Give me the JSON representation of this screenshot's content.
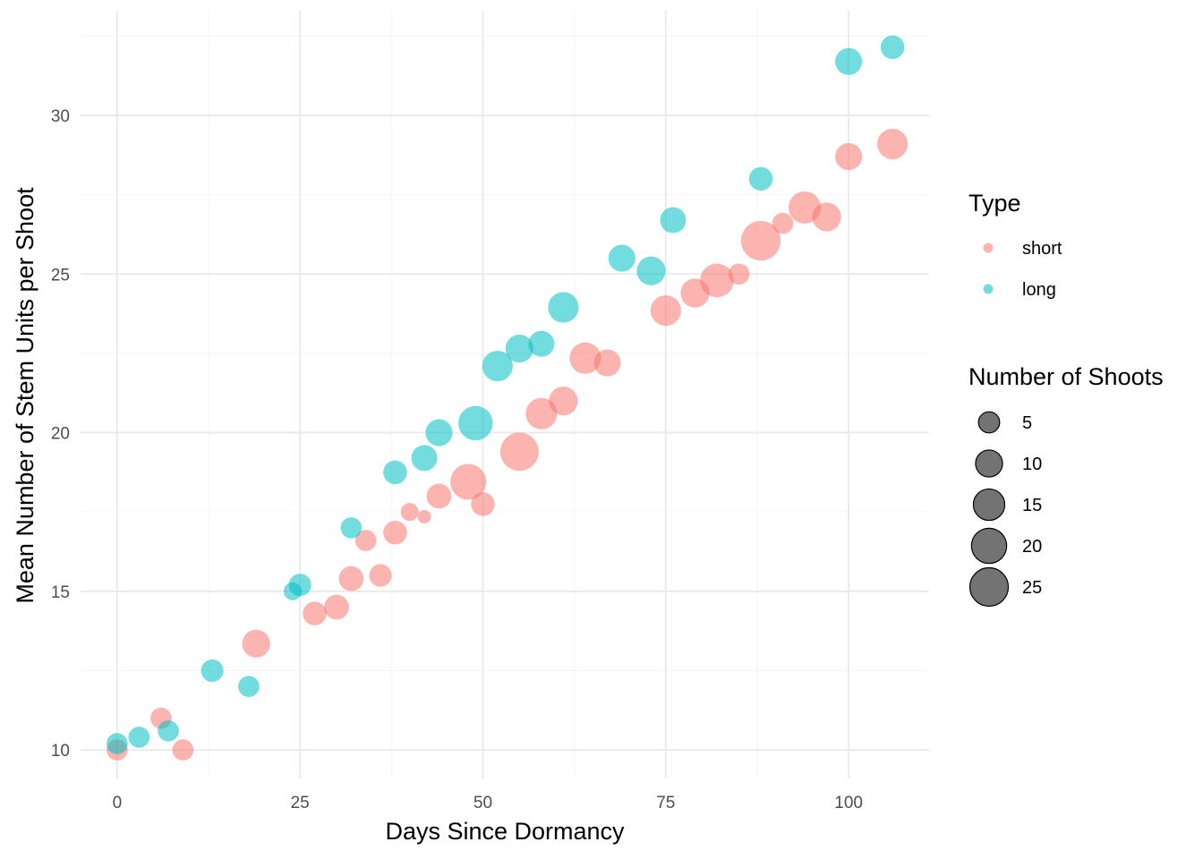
{
  "chart_data": {
    "type": "scatter",
    "xlabel": "Days Since Dormancy",
    "ylabel": "Mean Number of Stem Units per Shoot",
    "xlim": [
      -5,
      111
    ],
    "ylim": [
      9.1,
      33.3
    ],
    "x_ticks": [
      0,
      25,
      50,
      75,
      100
    ],
    "x_tick_labels": [
      "0",
      "25",
      "50",
      "75",
      "100"
    ],
    "y_ticks": [
      10,
      15,
      20,
      25,
      30
    ],
    "y_tick_labels": [
      "10",
      "15",
      "20",
      "25",
      "30"
    ],
    "grid": true,
    "point_alpha": 0.55,
    "color_legend": {
      "title": "Type",
      "position": "right",
      "entries": [
        {
          "label": "short",
          "color": "#F8766D"
        },
        {
          "label": "long",
          "color": "#00BFC4"
        }
      ]
    },
    "size_legend": {
      "title": "Number of Shoots",
      "position": "right",
      "color": "#000000",
      "values": [
        5,
        10,
        15,
        20,
        25
      ],
      "labels": [
        "5",
        "10",
        "15",
        "20",
        "25"
      ]
    },
    "series": [
      {
        "name": "short",
        "color": "#F8766D",
        "points": [
          {
            "x": 0,
            "y": 10.0,
            "size": 5
          },
          {
            "x": 6,
            "y": 11.0,
            "size": 5
          },
          {
            "x": 9,
            "y": 10.0,
            "size": 5
          },
          {
            "x": 19,
            "y": 13.35,
            "size": 11
          },
          {
            "x": 27,
            "y": 14.3,
            "size": 7
          },
          {
            "x": 30,
            "y": 14.5,
            "size": 8
          },
          {
            "x": 32,
            "y": 15.4,
            "size": 8
          },
          {
            "x": 34,
            "y": 16.6,
            "size": 5
          },
          {
            "x": 36,
            "y": 15.5,
            "size": 6
          },
          {
            "x": 38,
            "y": 16.85,
            "size": 7
          },
          {
            "x": 40,
            "y": 17.5,
            "size": 3
          },
          {
            "x": 42,
            "y": 17.35,
            "size": 1
          },
          {
            "x": 44,
            "y": 18.0,
            "size": 8
          },
          {
            "x": 48,
            "y": 18.45,
            "size": 21
          },
          {
            "x": 50,
            "y": 17.75,
            "size": 7
          },
          {
            "x": 55,
            "y": 19.4,
            "size": 25
          },
          {
            "x": 58,
            "y": 20.6,
            "size": 15
          },
          {
            "x": 61,
            "y": 21.0,
            "size": 12
          },
          {
            "x": 64,
            "y": 22.35,
            "size": 15
          },
          {
            "x": 67,
            "y": 22.2,
            "size": 10
          },
          {
            "x": 75,
            "y": 23.85,
            "size": 14
          },
          {
            "x": 79,
            "y": 24.4,
            "size": 12
          },
          {
            "x": 82,
            "y": 24.8,
            "size": 18
          },
          {
            "x": 85,
            "y": 25.0,
            "size": 5
          },
          {
            "x": 88,
            "y": 26.05,
            "size": 27
          },
          {
            "x": 91,
            "y": 26.6,
            "size": 5
          },
          {
            "x": 94,
            "y": 27.1,
            "size": 16
          },
          {
            "x": 97,
            "y": 26.8,
            "size": 12
          },
          {
            "x": 100,
            "y": 28.7,
            "size": 10
          },
          {
            "x": 106,
            "y": 29.1,
            "size": 14
          }
        ]
      },
      {
        "name": "long",
        "color": "#00BFC4",
        "points": [
          {
            "x": 0,
            "y": 10.2,
            "size": 5
          },
          {
            "x": 3,
            "y": 10.4,
            "size": 5
          },
          {
            "x": 7,
            "y": 10.6,
            "size": 5
          },
          {
            "x": 13,
            "y": 12.5,
            "size": 6
          },
          {
            "x": 18,
            "y": 12.0,
            "size": 5
          },
          {
            "x": 24,
            "y": 15.0,
            "size": 3
          },
          {
            "x": 25,
            "y": 15.2,
            "size": 6
          },
          {
            "x": 32,
            "y": 17.0,
            "size": 5
          },
          {
            "x": 38,
            "y": 18.75,
            "size": 7
          },
          {
            "x": 42,
            "y": 19.2,
            "size": 9
          },
          {
            "x": 44,
            "y": 20.0,
            "size": 10
          },
          {
            "x": 49,
            "y": 20.3,
            "size": 19
          },
          {
            "x": 52,
            "y": 22.1,
            "size": 14
          },
          {
            "x": 55,
            "y": 22.65,
            "size": 11
          },
          {
            "x": 58,
            "y": 22.8,
            "size": 9
          },
          {
            "x": 61,
            "y": 23.95,
            "size": 14
          },
          {
            "x": 69,
            "y": 25.5,
            "size": 10
          },
          {
            "x": 73,
            "y": 25.1,
            "size": 12
          },
          {
            "x": 76,
            "y": 26.7,
            "size": 9
          },
          {
            "x": 88,
            "y": 28.0,
            "size": 7
          },
          {
            "x": 100,
            "y": 31.7,
            "size": 10
          },
          {
            "x": 106,
            "y": 32.15,
            "size": 7
          }
        ]
      }
    ]
  }
}
